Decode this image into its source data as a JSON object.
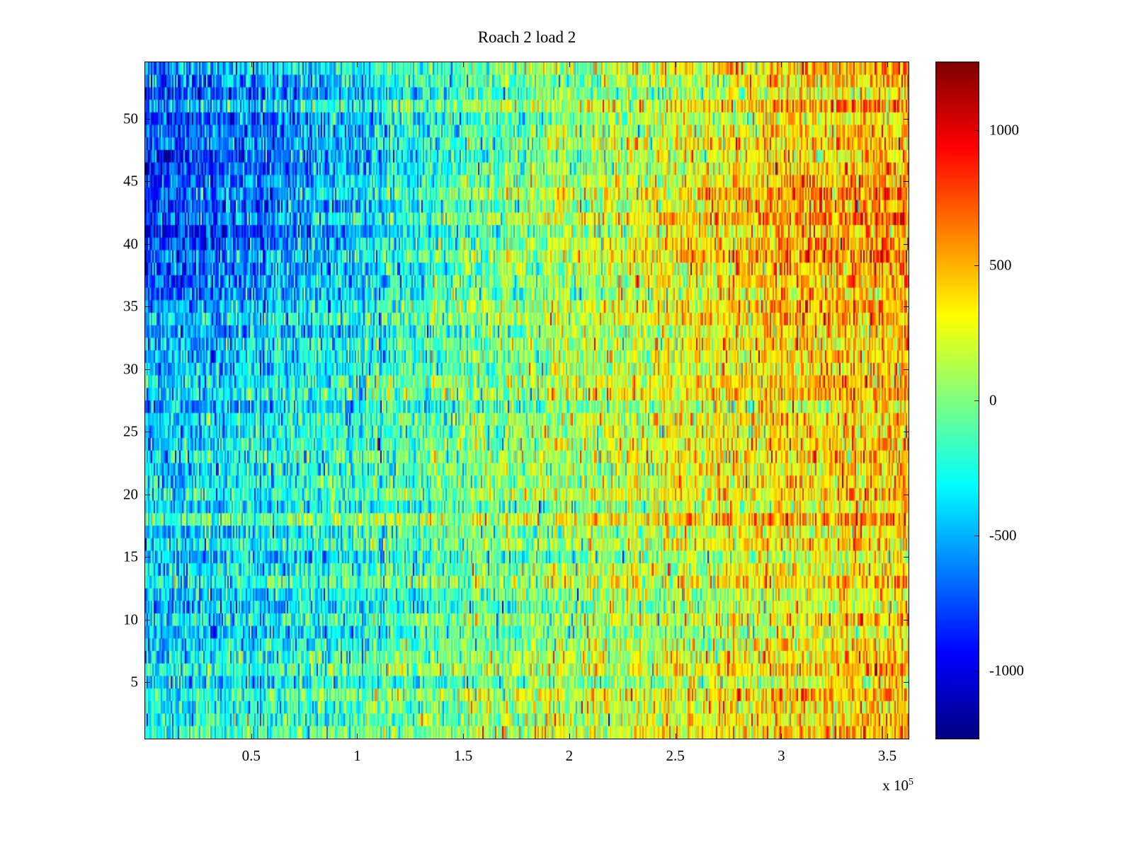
{
  "chart_data": {
    "type": "heatmap",
    "title": "Roach 2 load 2",
    "colormap": "jet",
    "style": {
      "background": "#ffffff",
      "axis_color": "#000000"
    },
    "x_axis": {
      "range": [
        0,
        360000
      ],
      "tick_values": [
        50000,
        100000,
        150000,
        200000,
        250000,
        300000,
        350000
      ],
      "tick_labels": [
        "0.5",
        "1",
        "1.5",
        "2",
        "2.5",
        "3",
        "3.5"
      ],
      "multiplier_base": "x 10",
      "multiplier_exponent": "5"
    },
    "y_axis": {
      "range": [
        0.5,
        54.5
      ],
      "tick_values": [
        5,
        10,
        15,
        20,
        25,
        30,
        35,
        40,
        45,
        50
      ],
      "tick_labels": [
        "5",
        "10",
        "15",
        "20",
        "25",
        "30",
        "35",
        "40",
        "45",
        "50"
      ]
    },
    "colorbar": {
      "range": [
        -1250,
        1250
      ],
      "tick_values": [
        1000,
        500,
        0,
        -500,
        -1000
      ],
      "tick_labels": [
        "1000",
        "500",
        "0",
        "-500",
        "-1000"
      ],
      "colormap": "jet"
    },
    "rows": 54,
    "grid": {
      "description": "Approximate mean signal values on a coarse 9x12 grid; rows listed top (y~54) to bottom (y~1), columns left (x~0) to right (x~3.6e5). Full data is a noisy 54-row raster trending from negative (blue) at left to positive (orange/red) at right, strongest contrast in rows 37-54.",
      "values": [
        [
          -600,
          -520,
          -430,
          -300,
          -150,
          -30,
          60,
          160,
          260,
          360,
          450,
          520
        ],
        [
          -720,
          -650,
          -500,
          -350,
          -180,
          -40,
          90,
          210,
          310,
          420,
          520,
          580
        ],
        [
          -820,
          -760,
          -600,
          -420,
          -220,
          -20,
          110,
          260,
          410,
          520,
          610,
          660
        ],
        [
          -520,
          -460,
          -360,
          -250,
          -110,
          0,
          100,
          210,
          310,
          400,
          460,
          520
        ],
        [
          -460,
          -410,
          -310,
          -210,
          -100,
          0,
          100,
          200,
          290,
          360,
          410,
          470
        ],
        [
          -420,
          -360,
          -300,
          -200,
          -110,
          -40,
          60,
          150,
          250,
          310,
          360,
          420
        ],
        [
          -360,
          -310,
          -260,
          -160,
          -90,
          0,
          60,
          150,
          210,
          300,
          360,
          410
        ],
        [
          -420,
          -360,
          -260,
          -150,
          -60,
          10,
          100,
          160,
          250,
          310,
          400,
          460
        ],
        [
          -310,
          -260,
          -200,
          -110,
          -40,
          50,
          110,
          200,
          260,
          310,
          400,
          460
        ]
      ]
    },
    "noise_std": 250
  }
}
